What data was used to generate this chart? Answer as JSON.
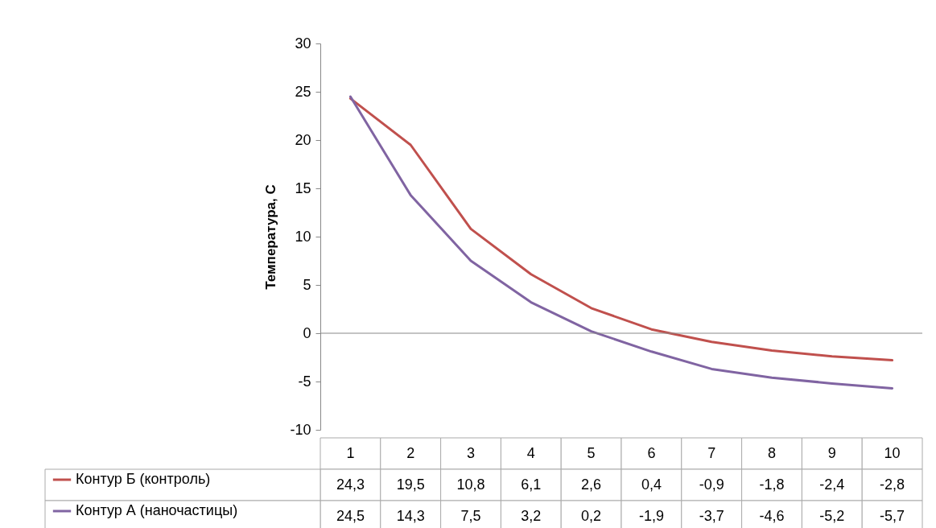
{
  "chart_data": {
    "type": "line",
    "ylabel": "Температура, С",
    "categories": [
      "1",
      "2",
      "3",
      "4",
      "5",
      "6",
      "7",
      "8",
      "9",
      "10"
    ],
    "series": [
      {
        "name": "Контур Б (контроль)",
        "color": "#c0504d",
        "values": [
          24.3,
          19.5,
          10.8,
          6.1,
          2.6,
          0.4,
          -0.9,
          -1.8,
          -2.4,
          -2.8
        ],
        "value_labels": [
          "24,3",
          "19,5",
          "10,8",
          "6,1",
          "2,6",
          "0,4",
          "-0,9",
          "-1,8",
          "-2,4",
          "-2,8"
        ]
      },
      {
        "name": "Контур А (наночастицы)",
        "color": "#8064a2",
        "values": [
          24.5,
          14.3,
          7.5,
          3.2,
          0.2,
          -1.9,
          -3.7,
          -4.6,
          -5.2,
          -5.7
        ],
        "value_labels": [
          "24,5",
          "14,3",
          "7,5",
          "3,2",
          "0,2",
          "-1,9",
          "-3,7",
          "-4,6",
          "-5,2",
          "-5,7"
        ]
      }
    ],
    "ylim": [
      -10,
      30
    ],
    "yticks": [
      -10,
      -5,
      0,
      5,
      10,
      15,
      20,
      25,
      30
    ],
    "legend": "bottom",
    "marker": "none",
    "line_style": "solid"
  }
}
